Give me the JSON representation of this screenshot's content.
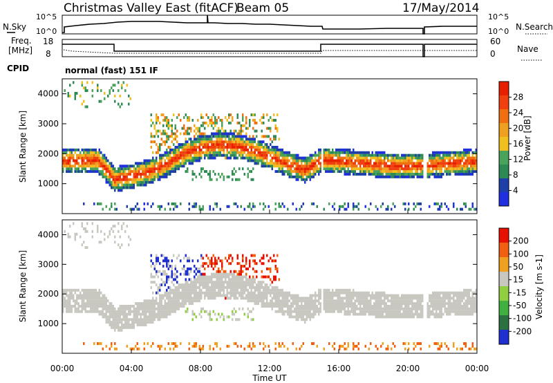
{
  "header": {
    "station": "Christmas Valley East (fitACF)",
    "beam": "Beam 05",
    "date": "17/May/2014"
  },
  "nsky_panel": {
    "left_label": "N.Sky",
    "left_ticks": [
      "10^5",
      "10^0"
    ],
    "right_label": "N.Search",
    "right_ticks": [
      "10^5",
      "10^0"
    ]
  },
  "freq_panel": {
    "left_label_1": "Freq.",
    "left_label_2": "[MHz]",
    "left_ticks": [
      "18",
      "8"
    ],
    "right_label": "Nave",
    "right_ticks": [
      "60",
      "0"
    ]
  },
  "cpid": {
    "label": "CPID",
    "value": "normal (fast) 151 IF"
  },
  "colors": {
    "scale_power": [
      "#2030e0",
      "#1e3fa8",
      "#2e8a55",
      "#4aa35a",
      "#f0c020",
      "#f0a020",
      "#f07010",
      "#f04010",
      "#e82000"
    ],
    "scale_velocity": [
      "#2030d0",
      "#2a7040",
      "#40b040",
      "#90d040",
      "#c8c8c0",
      "#f0a020",
      "#f06010",
      "#e81000"
    ]
  },
  "chart_data": [
    {
      "type": "heatmap",
      "name": "power",
      "ylabel": "Slant Range [km]",
      "xlabel": "",
      "yticks": [
        "1000",
        "2000",
        "3000",
        "4000"
      ],
      "ylim": [
        0,
        4500
      ],
      "colorbar_label": "Power [dB]",
      "colorbar_ticks": [
        "28",
        "24",
        "20",
        "16",
        "12",
        "8",
        "4"
      ],
      "xticks": [
        "00:00",
        "04:00",
        "08:00",
        "12:00",
        "16:00",
        "20:00",
        "00:00"
      ],
      "main_band_center": [
        [
          0,
          1700
        ],
        [
          1,
          1720
        ],
        [
          2,
          1740
        ],
        [
          3,
          1100
        ],
        [
          4,
          1200
        ],
        [
          5,
          1350
        ],
        [
          6,
          1600
        ],
        [
          7,
          1950
        ],
        [
          8,
          2150
        ],
        [
          9,
          2250
        ],
        [
          10,
          2200
        ],
        [
          11,
          2050
        ],
        [
          12,
          1850
        ],
        [
          13,
          1600
        ],
        [
          14,
          1400
        ],
        [
          15,
          1750
        ],
        [
          16,
          1700
        ],
        [
          17,
          1650
        ],
        [
          18,
          1600
        ],
        [
          19,
          1550
        ],
        [
          20,
          1550
        ],
        [
          21,
          1550
        ],
        [
          22,
          1600
        ],
        [
          23,
          1650
        ],
        [
          24,
          1700
        ]
      ]
    },
    {
      "type": "heatmap",
      "name": "velocity",
      "ylabel": "Slant Range [km]",
      "xlabel": "Time UT",
      "yticks": [
        "1000",
        "2000",
        "3000",
        "4000"
      ],
      "ylim": [
        0,
        4500
      ],
      "colorbar_label": "Velocity [m s-1]",
      "colorbar_ticks": [
        "200",
        "100",
        "50",
        "15",
        "-15",
        "-50",
        "-100",
        "-200"
      ],
      "xticks": [
        "00:00",
        "04:00",
        "08:00",
        "12:00",
        "16:00",
        "20:00",
        "00:00"
      ]
    }
  ]
}
